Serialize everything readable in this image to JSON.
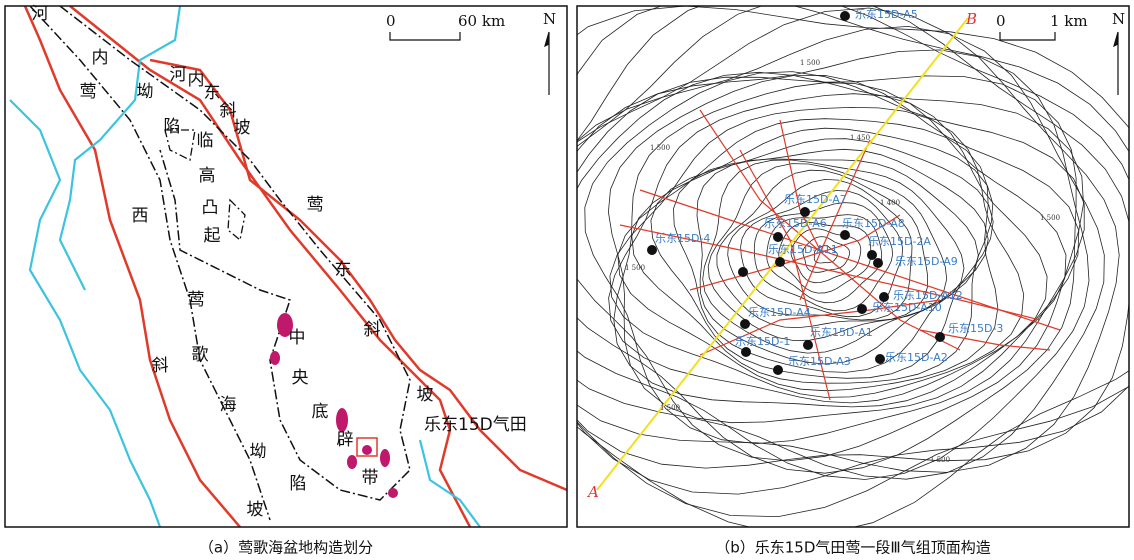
{
  "panels": [
    {
      "labels": [
        "河",
        "内",
        "莺",
        "坳",
        "陷",
        "河",
        "内",
        "东",
        "斜",
        "坡",
        "临",
        "高",
        "凸",
        "起",
        "西",
        "斜",
        "坡",
        "莺",
        "歌",
        "海",
        "坳",
        "陷",
        "莺",
        "东",
        "斜",
        "坡",
        "中",
        "央",
        "底",
        "辟",
        "带"
      ],
      "field": "乐东15D气田",
      "scale": {
        "zero": "0",
        "length": "60 km"
      },
      "north": "N",
      "caption": "（a）莺歌海盆地构造划分"
    },
    {
      "section": {
        "start": "A",
        "end": "B"
      },
      "scale": {
        "zero": "0",
        "length": "1 km"
      },
      "north": "N",
      "wells": [
        "乐东15D-A5",
        "乐东15D-A7",
        "乐东15D-A6",
        "乐东15D-A8",
        "乐东15D-4",
        "乐东15D-A11",
        "乐东15D-2A",
        "乐东15D-A9",
        "乐东15D-A12",
        "乐东15D-A4",
        "乐东15D-A10",
        "乐东15D-3",
        "乐东15D-A1",
        "乐东15D-1",
        "乐东15D-A3",
        "乐东15D-A2"
      ],
      "contour_labels": [
        "1 500",
        "1 500",
        "1 500",
        "1 450",
        "1 400",
        "1 500",
        "1 500",
        "1 500"
      ],
      "caption": "（b）乐东15D气田莺一段Ⅲ气组顶面构造"
    }
  ]
}
